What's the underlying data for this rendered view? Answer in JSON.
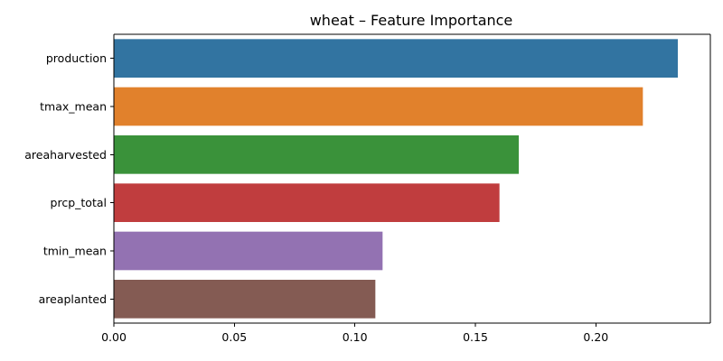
{
  "chart_data": {
    "type": "bar",
    "orientation": "horizontal",
    "title": "wheat – Feature Importance",
    "xlabel": "",
    "ylabel": "",
    "categories": [
      "production",
      "tmax_mean",
      "areaharvested",
      "prcp_total",
      "tmin_mean",
      "areaplanted"
    ],
    "values": [
      0.234,
      0.2195,
      0.168,
      0.16,
      0.1115,
      0.1085
    ],
    "colors": [
      "#3274a1",
      "#e1812c",
      "#3a923a",
      "#c03d3e",
      "#9372b2",
      "#845b53"
    ],
    "xlim": [
      0,
      0.2475
    ],
    "xticks": [
      0.0,
      0.05,
      0.1,
      0.15,
      0.2
    ],
    "xtick_labels": [
      "0.00",
      "0.05",
      "0.10",
      "0.15",
      "0.20"
    ],
    "grid": false,
    "legend": "none"
  }
}
